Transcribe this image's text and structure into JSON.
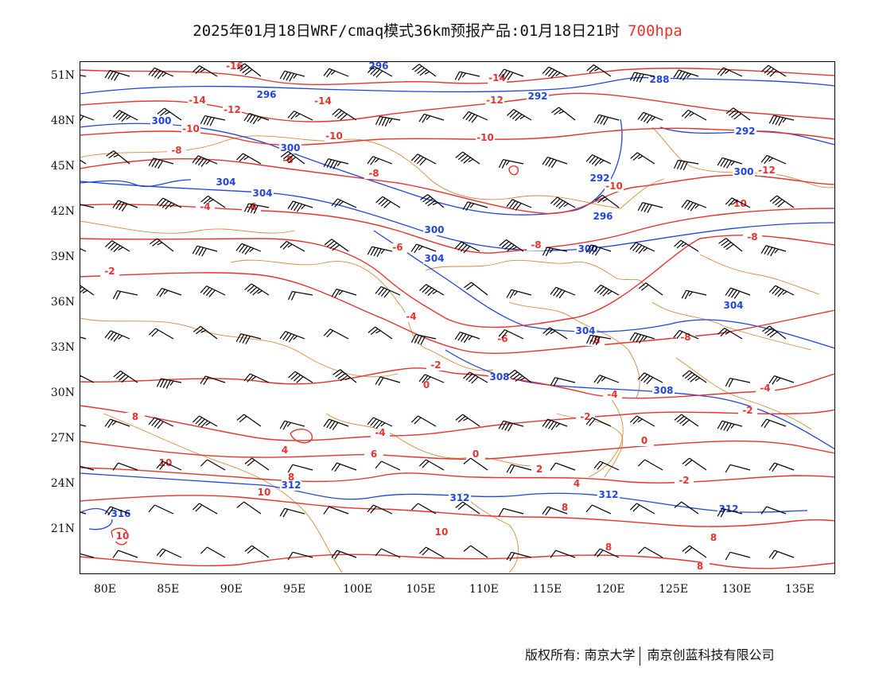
{
  "title": {
    "main": "2025年01月18日WRF/cmaq模式36km预报产品:01月18日21时",
    "level": "700hpa",
    "level_color": "#e8332f"
  },
  "axes": {
    "lat_labels": [
      "51N",
      "48N",
      "45N",
      "42N",
      "39N",
      "36N",
      "33N",
      "30N",
      "27N",
      "24N",
      "21N"
    ],
    "lon_labels": [
      "80E",
      "85E",
      "90E",
      "95E",
      "100E",
      "105E",
      "110E",
      "115E",
      "120E",
      "125E",
      "130E",
      "135E"
    ]
  },
  "colors": {
    "temperature_contour": "#e8332f",
    "height_contour": "#2244dd",
    "boundary": "#d98a3a",
    "wind_barb": "#000000"
  },
  "temperature_labels": [
    "-16",
    "-14",
    "-12",
    "-10",
    "-8",
    "-6",
    "-4",
    "-2",
    "0",
    "2",
    "4",
    "6",
    "8",
    "10"
  ],
  "height_labels": [
    "288",
    "292",
    "296",
    "300",
    "304",
    "308",
    "312",
    "316"
  ],
  "copyright": {
    "left": "版权所有: 南京大学",
    "right": "南京创蓝科技有限公司"
  }
}
